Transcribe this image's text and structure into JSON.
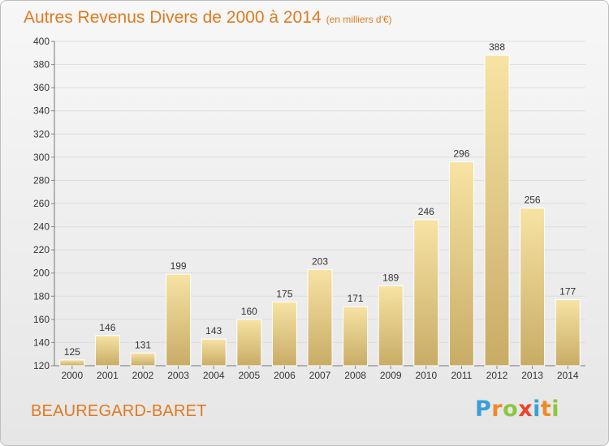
{
  "title": "Autres Revenus Divers de 2000 à 2014",
  "unit": "(en milliers d'€)",
  "city": "BEAUREGARD-BARET",
  "logo": {
    "letters": [
      "P",
      "r",
      "o",
      "x",
      "i",
      "t",
      "i"
    ],
    "colors": [
      "#3aa0d8",
      "#f08a24",
      "#8cc63f",
      "#e8452c",
      "#3aa0d8",
      "#f08a24",
      "#8cc63f"
    ]
  },
  "colors": {
    "title": "#e07a1f",
    "bar_light": "#f7e3a4",
    "bar_dark": "#c8ac66",
    "grid": "#dddddd"
  },
  "chart_data": {
    "type": "bar",
    "title": "Autres Revenus Divers de 2000 à 2014",
    "xlabel": "",
    "ylabel": "(en milliers d'€)",
    "categories": [
      "2000",
      "2001",
      "2002",
      "2003",
      "2004",
      "2005",
      "2006",
      "2007",
      "2008",
      "2009",
      "2010",
      "2011",
      "2012",
      "2013",
      "2014"
    ],
    "values": [
      125,
      146,
      131,
      199,
      143,
      160,
      175,
      203,
      171,
      189,
      246,
      296,
      388,
      256,
      177
    ],
    "ylim": [
      120,
      400
    ],
    "yticks": [
      120,
      140,
      160,
      180,
      200,
      220,
      240,
      260,
      280,
      300,
      320,
      340,
      360,
      380,
      400
    ],
    "grid": true
  }
}
